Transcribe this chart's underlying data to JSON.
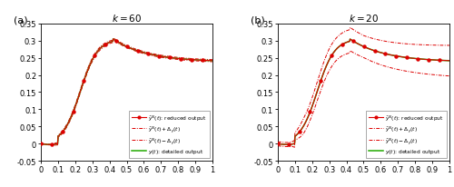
{
  "title_a": "$k = 60$",
  "title_b": "$k = 20$",
  "label_a": "(a)",
  "label_b": "(b)",
  "xlim": [
    0,
    1
  ],
  "ylim": [
    -0.05,
    0.35
  ],
  "yticks": [
    -0.05,
    0,
    0.05,
    0.1,
    0.15,
    0.2,
    0.25,
    0.3,
    0.35
  ],
  "xticks": [
    0,
    0.1,
    0.2,
    0.3,
    0.4,
    0.5,
    0.6,
    0.7,
    0.8,
    0.9,
    1
  ],
  "color_reduced": "#dd0000",
  "color_exact": "#22aa00",
  "legend_entries": [
    "$\\hat{y}^N(t)$: reduced output",
    "$\\hat{y}^N(t)+\\Delta_y(t)$",
    "$\\hat{y}^N(t)-\\Delta_y(t)$",
    "$y(t)$: detailed output"
  ],
  "n_points": 400,
  "fig_width": 5.0,
  "fig_height": 2.07,
  "dpi": 100
}
